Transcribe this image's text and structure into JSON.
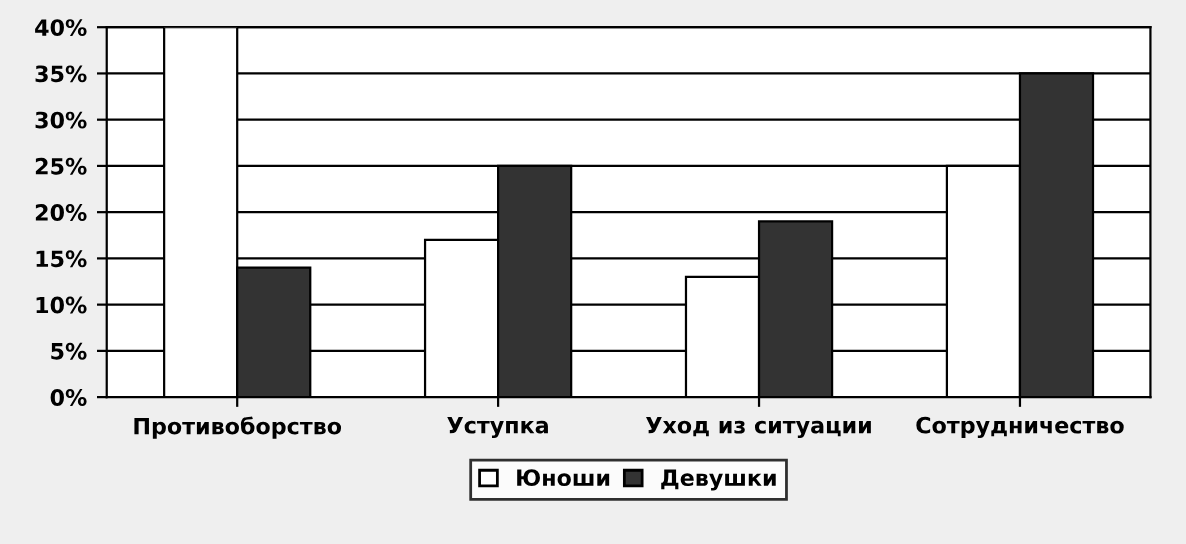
{
  "chart_data": {
    "type": "bar",
    "categories": [
      "Противоборство",
      "Уступка",
      "Уход из ситуации",
      "Сотрудничество"
    ],
    "series": [
      {
        "name": "Юноши",
        "color": "#ffffff",
        "values": [
          40,
          17,
          13,
          25
        ]
      },
      {
        "name": "Девушки",
        "color": "#333333",
        "values": [
          14,
          25,
          19,
          35
        ]
      }
    ],
    "ylim": [
      0,
      40
    ],
    "yticks": [
      {
        "value": 0,
        "label": "0%"
      },
      {
        "value": 5,
        "label": "5%"
      },
      {
        "value": 10,
        "label": "10%"
      },
      {
        "value": 15,
        "label": "15%"
      },
      {
        "value": 20,
        "label": "20%"
      },
      {
        "value": 25,
        "label": "25%"
      },
      {
        "value": 30,
        "label": "30%"
      },
      {
        "value": 35,
        "label": "35%"
      },
      {
        "value": 40,
        "label": "40%"
      }
    ],
    "grid": "y",
    "legend": "bottom"
  }
}
